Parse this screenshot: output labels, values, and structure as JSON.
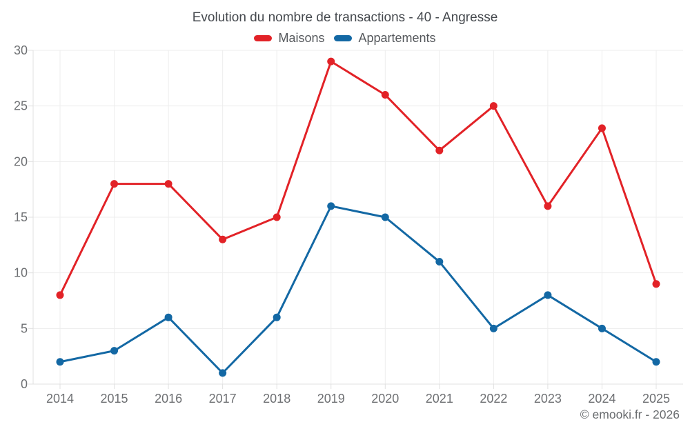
{
  "title": "Evolution du nombre de transactions - 40 - Angresse",
  "footer": "© emooki.fr - 2026",
  "chart_data": {
    "type": "line",
    "title": "Evolution du nombre de transactions - 40 - Angresse",
    "categories": [
      "2014",
      "2015",
      "2016",
      "2017",
      "2018",
      "2019",
      "2020",
      "2021",
      "2022",
      "2023",
      "2024",
      "2025"
    ],
    "series": [
      {
        "name": "Maisons",
        "color": "#e22227",
        "values": [
          8,
          18,
          18,
          13,
          15,
          29,
          26,
          21,
          25,
          16,
          23,
          9
        ]
      },
      {
        "name": "Appartements",
        "color": "#1368a4",
        "values": [
          2,
          3,
          6,
          1,
          6,
          16,
          15,
          11,
          5,
          8,
          5,
          2
        ]
      }
    ],
    "xlabel": "",
    "ylabel": "",
    "ylim": [
      0,
      30
    ],
    "yticks": [
      0,
      5,
      10,
      15,
      20,
      25,
      30
    ],
    "grid": true,
    "legend_position": "top",
    "style": {
      "background": "#ffffff",
      "grid_color": "#ededed",
      "axis_color": "#e0e0e0",
      "tick_color": "#e0e0e0",
      "axis_label_color": "#6e7073",
      "title_color": "#45494e",
      "legend_text_color": "#55585c",
      "footer_color": "#696c6f"
    }
  }
}
